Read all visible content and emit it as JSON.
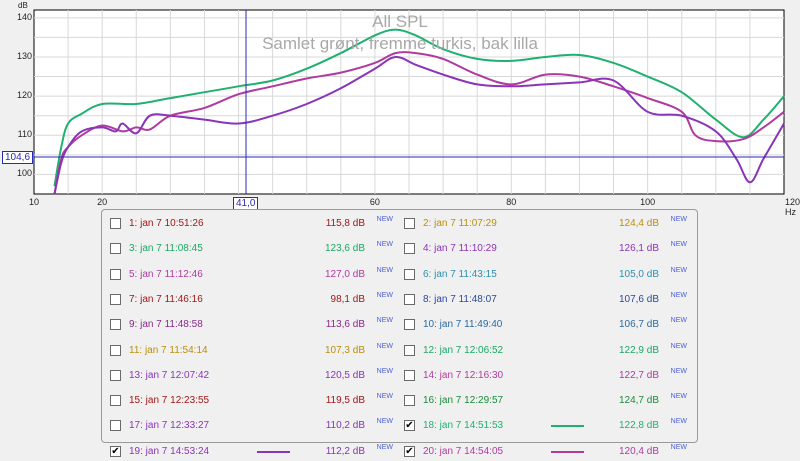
{
  "chart_data": {
    "type": "line",
    "title": "All SPL",
    "subtitle": "Samlet grønt, fremme turkis, bak lilla",
    "ylabel": "dB",
    "xlabel": "Hz",
    "xlim": [
      10,
      120
    ],
    "ylim": [
      95,
      142
    ],
    "x_ticks": [
      "10",
      "20",
      "40",
      "60",
      "80",
      "100",
      "120"
    ],
    "y_ticks": [
      "100",
      "110",
      "120",
      "130",
      "140"
    ],
    "grid": true,
    "cursor": {
      "x": "41,0",
      "y": "104,6"
    },
    "series": [
      {
        "name": "18: jan 7 14:51:53",
        "color": "#20b070",
        "x": [
          13,
          14,
          15,
          17,
          20,
          25,
          30,
          35,
          40,
          45,
          50,
          55,
          60,
          63,
          66,
          70,
          75,
          80,
          85,
          90,
          95,
          100,
          105,
          110,
          114,
          117,
          120
        ],
        "y": [
          97,
          107,
          113,
          115.5,
          118,
          118,
          119.5,
          121,
          122.5,
          124,
          127,
          131,
          135.5,
          137,
          135.5,
          132,
          129.5,
          129,
          130,
          130.5,
          128.5,
          125,
          121,
          114,
          109.5,
          114,
          120
        ]
      },
      {
        "name": "20: jan 7 14:54:05",
        "color": "#b03aa0",
        "x": [
          13,
          14,
          15,
          17,
          20,
          23,
          25,
          27,
          30,
          35,
          40,
          45,
          50,
          55,
          60,
          63,
          66,
          70,
          75,
          80,
          85,
          90,
          95,
          100,
          105,
          107,
          110,
          114,
          117,
          120
        ],
        "y": [
          95,
          104,
          107,
          110,
          112.5,
          111,
          112,
          111.5,
          115,
          117,
          120.5,
          122.5,
          124.5,
          126,
          128.5,
          131,
          131,
          129.5,
          125.5,
          123,
          125.5,
          125,
          122.5,
          119.5,
          116,
          110,
          108.5,
          109,
          112,
          116
        ]
      },
      {
        "name": "19: jan 7 14:53:24",
        "color": "#8a34b8",
        "x": [
          13,
          14,
          15,
          17,
          20,
          22,
          23,
          25,
          27,
          30,
          35,
          40,
          45,
          50,
          55,
          60,
          63,
          66,
          70,
          75,
          80,
          85,
          90,
          95,
          100,
          105,
          110,
          113,
          115,
          117,
          120
        ],
        "y": [
          95,
          103,
          107,
          111,
          112,
          111,
          113,
          110.5,
          115,
          115,
          114,
          113,
          115,
          118,
          122,
          127,
          130,
          128,
          125.5,
          123,
          122.5,
          123,
          123.5,
          124,
          116,
          115,
          111,
          104,
          98,
          104,
          113
        ]
      }
    ]
  },
  "legend": {
    "items": [
      {
        "name": "1: jan 7 10:51:26",
        "value": "115,8 dB",
        "tag": "NEW",
        "checked": false,
        "color": "#a01818",
        "visible": false
      },
      {
        "name": "2: jan 7 11:07:29",
        "value": "124,4 dB",
        "tag": "NEW",
        "checked": false,
        "color": "#b8900a",
        "visible": false
      },
      {
        "name": "3: jan 7 11:08:45",
        "value": "123,6 dB",
        "tag": "NEW",
        "checked": false,
        "color": "#1aa864",
        "visible": false
      },
      {
        "name": "4: jan 7 11:10:29",
        "value": "126,1 dB",
        "tag": "NEW",
        "checked": false,
        "color": "#8a34b8",
        "visible": false
      },
      {
        "name": "5: jan 7 11:12:46",
        "value": "127,0 dB",
        "tag": "NEW",
        "checked": false,
        "color": "#b03aa0",
        "visible": false
      },
      {
        "name": "6: jan 7 11:43:15",
        "value": "105,0 dB",
        "tag": "NEW",
        "checked": false,
        "color": "#2c90b0",
        "visible": false
      },
      {
        "name": "7: jan 7 11:46:16",
        "value": "98,1 dB",
        "tag": "NEW",
        "checked": false,
        "color": "#a01818",
        "visible": false
      },
      {
        "name": "8: jan 7 11:48:07",
        "value": "107,6 dB",
        "tag": "NEW",
        "checked": false,
        "color": "#2a4a9a",
        "visible": false
      },
      {
        "name": "9: jan 7 11:48:58",
        "value": "113,6 dB",
        "tag": "NEW",
        "checked": false,
        "color": "#8a2a8a",
        "visible": false
      },
      {
        "name": "10: jan 7 11:49:40",
        "value": "106,7 dB",
        "tag": "NEW",
        "checked": false,
        "color": "#2a6aa0",
        "visible": false
      },
      {
        "name": "11: jan 7 11:54:14",
        "value": "107,3 dB",
        "tag": "NEW",
        "checked": false,
        "color": "#b8900a",
        "visible": false
      },
      {
        "name": "12: jan 7 12:06:52",
        "value": "122,9 dB",
        "tag": "NEW",
        "checked": false,
        "color": "#1aa864",
        "visible": false
      },
      {
        "name": "13: jan 7 12:07:42",
        "value": "120,5 dB",
        "tag": "NEW",
        "checked": false,
        "color": "#8a34b8",
        "visible": false
      },
      {
        "name": "14: jan 7 12:16:30",
        "value": "122,7 dB",
        "tag": "NEW",
        "checked": false,
        "color": "#b03aa0",
        "visible": false
      },
      {
        "name": "15: jan 7 12:23:55",
        "value": "119,5 dB",
        "tag": "NEW",
        "checked": false,
        "color": "#a01818",
        "visible": false
      },
      {
        "name": "16: jan 7 12:29:57",
        "value": "124,7 dB",
        "tag": "NEW",
        "checked": false,
        "color": "#1a8a3a",
        "visible": false
      },
      {
        "name": "17: jan 7 12:33:27",
        "value": "110,2 dB",
        "tag": "NEW",
        "checked": false,
        "color": "#8a34b8",
        "visible": false
      },
      {
        "name": "18: jan 7 14:51:53",
        "value": "122,8 dB",
        "tag": "NEW",
        "checked": true,
        "color": "#20b070",
        "visible": true
      },
      {
        "name": "19: jan 7 14:53:24",
        "value": "112,2 dB",
        "tag": "NEW",
        "checked": true,
        "color": "#8a34b8",
        "visible": true
      },
      {
        "name": "20: jan 7 14:54:05",
        "value": "120,4 dB",
        "tag": "NEW",
        "checked": true,
        "color": "#b03aa0",
        "visible": true
      }
    ]
  }
}
